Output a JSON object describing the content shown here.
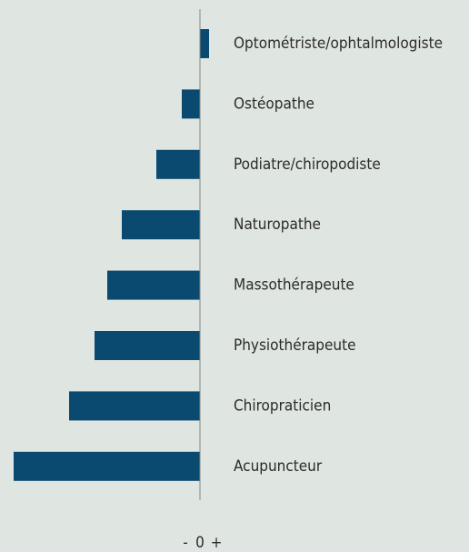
{
  "chart_data": {
    "type": "hbar",
    "categories": [
      "Optométriste/ophtalmologiste",
      "Ostéopathe",
      "Podiatre/chiropodiste",
      "Naturopathe",
      "Massothérapeute",
      "Physiothérapeute",
      "Chiropraticien",
      "Acupuncteur"
    ],
    "values": [
      10,
      -20,
      -48,
      -86,
      -102,
      -116,
      -144,
      -205
    ],
    "color": "#0b4a70",
    "xlim": [
      -220,
      10
    ],
    "xticks": [
      0
    ],
    "annotations": [
      "-",
      "+"
    ]
  }
}
